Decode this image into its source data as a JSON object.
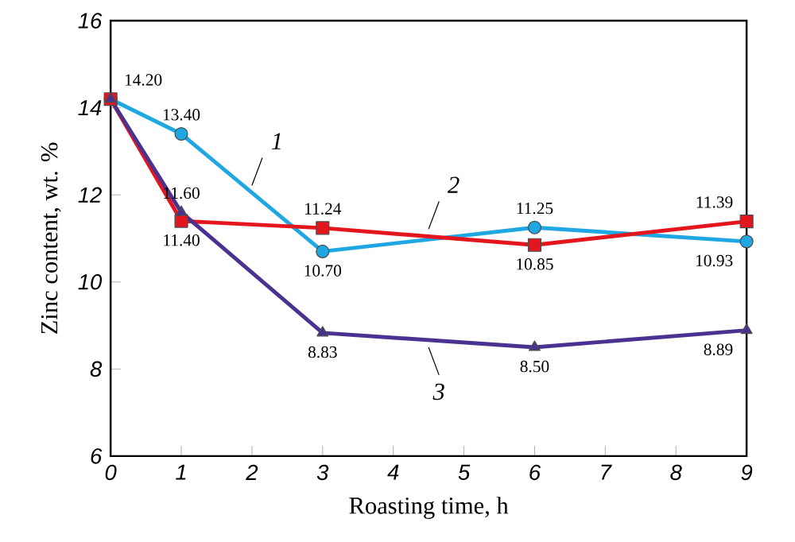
{
  "chart_data": {
    "type": "line",
    "xlabel": "Roasting time, h",
    "ylabel": "Zinc content, wt. %",
    "x": [
      0,
      1,
      3,
      6,
      9
    ],
    "series": [
      {
        "name": "1",
        "color": "#1ea7e1",
        "marker": "circle",
        "values": [
          14.2,
          13.4,
          10.7,
          11.25,
          10.93
        ],
        "value_labels": [
          "14.20",
          "13.40",
          "10.70",
          "11.25",
          "10.93"
        ]
      },
      {
        "name": "2",
        "color": "#e3161d",
        "marker": "square",
        "values": [
          14.2,
          11.4,
          11.24,
          10.85,
          11.39
        ],
        "value_labels": [
          null,
          "11.40",
          "11.24",
          "10.85",
          "11.39"
        ]
      },
      {
        "name": "3",
        "color": "#4a3291",
        "marker": "triangle",
        "values": [
          14.2,
          11.6,
          8.83,
          8.5,
          8.89
        ],
        "value_labels": [
          null,
          "11.60",
          "8.83",
          "8.50",
          "8.89"
        ]
      }
    ],
    "xlim": [
      0,
      9
    ],
    "xticks": [
      0,
      1,
      2,
      3,
      4,
      5,
      6,
      7,
      8,
      9
    ],
    "ylim": [
      6,
      16
    ],
    "yticks": [
      6,
      8,
      10,
      12,
      14,
      16
    ],
    "grid": false,
    "legend": false,
    "line_style": "solid"
  }
}
